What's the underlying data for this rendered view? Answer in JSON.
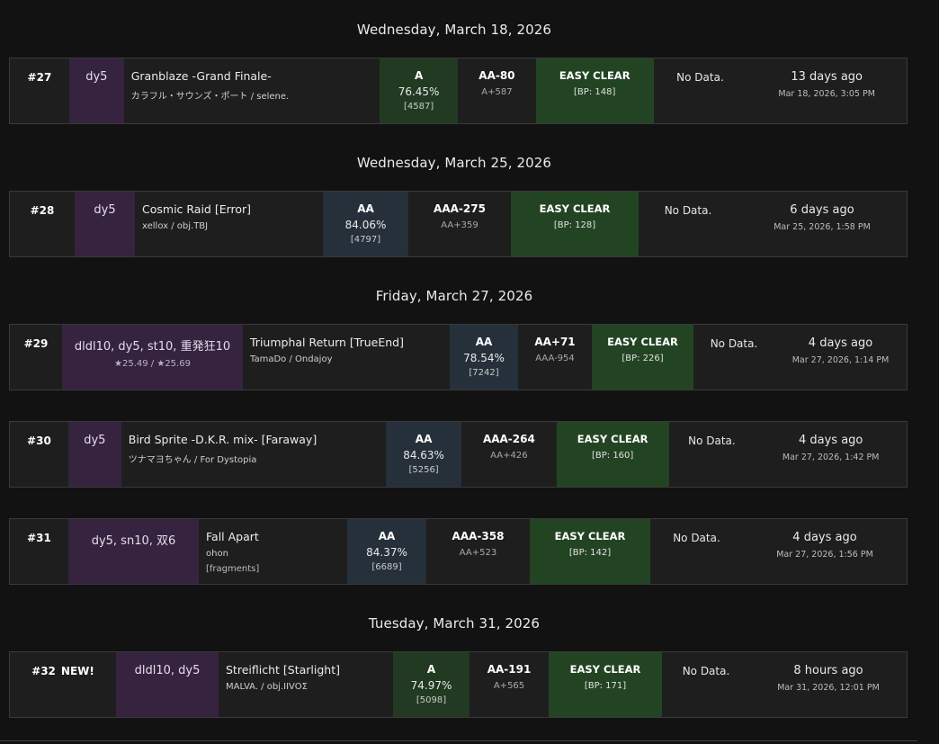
{
  "sessions": [
    {
      "date": "Wednesday, March 18, 2026",
      "row": {
        "num": "#27",
        "new": "",
        "tags": "dy5",
        "tags_sub": "",
        "title": "Granblaze -Grand Finale-",
        "artist": "カラフル・サウンズ・ポート / selene.",
        "extra": "",
        "grade": "A",
        "percent": "76.45%",
        "score": "[4587]",
        "diff": "AA-80",
        "diff_sub": "A+587",
        "lamp": "EASY CLEAR",
        "bp": "[BP: 148]",
        "nodata": "No Data.",
        "rel": "13 days ago",
        "full": "Mar 18, 2026, 3:05 PM"
      }
    },
    {
      "date": "Wednesday, March 25, 2026",
      "row": {
        "num": "#28",
        "new": "",
        "tags": "dy5",
        "tags_sub": "",
        "title": "Cosmic Raid [Error]",
        "artist": "xellox / obj.TBJ",
        "extra": "",
        "grade": "AA",
        "percent": "84.06%",
        "score": "[4797]",
        "diff": "AAA-275",
        "diff_sub": "AA+359",
        "lamp": "EASY CLEAR",
        "bp": "[BP: 128]",
        "nodata": "No Data.",
        "rel": "6 days ago",
        "full": "Mar 25, 2026, 1:58 PM"
      }
    },
    {
      "date": "Friday, March 27, 2026",
      "row": {
        "num": "#29",
        "new": "",
        "tags": "dldl10, dy5, st10, 重発狂10",
        "tags_sub": "★25.49 / ★25.69",
        "title": "Triumphal Return [TrueEnd]",
        "artist": "TamaDo / Ondajoy",
        "extra": "",
        "grade": "AA",
        "percent": "78.54%",
        "score": "[7242]",
        "diff": "AA+71",
        "diff_sub": "AAA-954",
        "lamp": "EASY CLEAR",
        "bp": "[BP: 226]",
        "nodata": "No Data.",
        "rel": "4 days ago",
        "full": "Mar 27, 2026, 1:14 PM"
      }
    },
    {
      "date": "",
      "row": {
        "num": "#30",
        "new": "",
        "tags": "dy5",
        "tags_sub": "",
        "title": "Bird Sprite -D.K.R. mix- [Faraway]",
        "artist": "ツナマヨちゃん / For Dystopia",
        "extra": "",
        "grade": "AA",
        "percent": "84.63%",
        "score": "[5256]",
        "diff": "AAA-264",
        "diff_sub": "AA+426",
        "lamp": "EASY CLEAR",
        "bp": "[BP: 160]",
        "nodata": "No Data.",
        "rel": "4 days ago",
        "full": "Mar 27, 2026, 1:42 PM"
      }
    },
    {
      "date": "",
      "row": {
        "num": "#31",
        "new": "",
        "tags": "dy5, sn10, 双6",
        "tags_sub": "",
        "title": "Fall Apart",
        "artist": "ohon",
        "extra": "[fragments]",
        "grade": "AA",
        "percent": "84.37%",
        "score": "[6689]",
        "diff": "AAA-358",
        "diff_sub": "AA+523",
        "lamp": "EASY CLEAR",
        "bp": "[BP: 142]",
        "nodata": "No Data.",
        "rel": "4 days ago",
        "full": "Mar 27, 2026, 1:56 PM"
      }
    },
    {
      "date": "Tuesday, March 31, 2026",
      "row": {
        "num": "#32",
        "new": "NEW!",
        "tags": "dldl10, dy5",
        "tags_sub": "",
        "title": "Streiflicht [Starlight]",
        "artist": "MALVA. / obj.IIVOΣ",
        "extra": "",
        "grade": "A",
        "percent": "74.97%",
        "score": "[5098]",
        "diff": "AA-191",
        "diff_sub": "A+565",
        "lamp": "EASY CLEAR",
        "bp": "[BP: 171]",
        "nodata": "No Data.",
        "rel": "8 hours ago",
        "full": "Mar 31, 2026, 12:01 PM"
      }
    }
  ]
}
